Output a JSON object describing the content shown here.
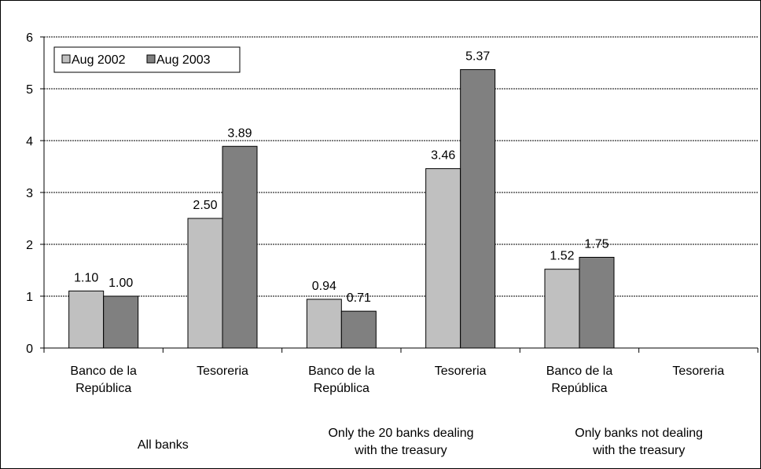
{
  "chart_data": {
    "type": "bar",
    "title": "",
    "xlabel": "",
    "ylabel": "",
    "ylim": [
      0,
      6
    ],
    "yticks": [
      "0",
      "1",
      "2",
      "3",
      "4",
      "5",
      "6"
    ],
    "grid": true,
    "legend_position": "top-left",
    "categories": [
      [
        "Banco de la",
        "República"
      ],
      [
        "Tesoreria"
      ],
      [
        "Banco de la",
        "República"
      ],
      [
        "Tesoreria"
      ],
      [
        "Banco de la",
        "República"
      ],
      [
        "Tesoreria"
      ]
    ],
    "groups": [
      {
        "label": [
          "All banks"
        ],
        "span": 2
      },
      {
        "label": [
          "Only the 20 banks dealing",
          "with the treasury"
        ],
        "span": 2
      },
      {
        "label": [
          "Only banks not dealing",
          "with the treasury"
        ],
        "span": 2
      }
    ],
    "series": [
      {
        "name": "Aug 2002",
        "color": "#c0c0c0",
        "values": [
          1.1,
          2.5,
          0.94,
          3.46,
          1.52,
          null
        ],
        "labels": [
          "1.10",
          "2.50",
          "0.94",
          "3.46",
          "1.52",
          ""
        ]
      },
      {
        "name": "Aug 2003",
        "color": "#808080",
        "values": [
          1.0,
          3.89,
          0.71,
          5.37,
          1.75,
          null
        ],
        "labels": [
          "1.00",
          "3.89",
          "0.71",
          "5.37",
          "1.75",
          ""
        ]
      }
    ]
  }
}
